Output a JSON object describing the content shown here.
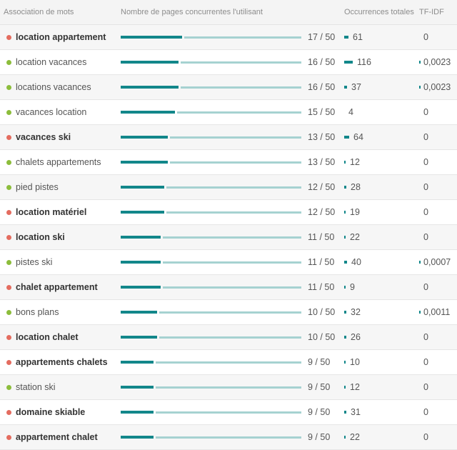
{
  "header": {
    "association": "Association de mots",
    "pages": "Nombre de pages concurrentes l'utilisant",
    "occurrences": "Occurrences totales",
    "tfidf": "TF-IDF"
  },
  "colors": {
    "red_status": "#e46c5f",
    "green_status": "#8cbd3b",
    "bar_dark": "#12878a",
    "bar_light": "#a6d2d1"
  },
  "rows": [
    {
      "keyword": "location appartement",
      "status": "red",
      "bold": true,
      "pages": "17 / 50",
      "pages_value": 17,
      "occurrences": "61",
      "occ_value": 61,
      "tfidf": "0",
      "tf_mark": false
    },
    {
      "keyword": "location vacances",
      "status": "green",
      "bold": false,
      "pages": "16 / 50",
      "pages_value": 16,
      "occurrences": "116",
      "occ_value": 116,
      "tfidf": "0,0023",
      "tf_mark": true
    },
    {
      "keyword": "locations vacances",
      "status": "green",
      "bold": false,
      "pages": "16 / 50",
      "pages_value": 16,
      "occurrences": "37",
      "occ_value": 37,
      "tfidf": "0,0023",
      "tf_mark": true
    },
    {
      "keyword": "vacances location",
      "status": "green",
      "bold": false,
      "pages": "15 / 50",
      "pages_value": 15,
      "occurrences": "4",
      "occ_value": 4,
      "tfidf": "0",
      "tf_mark": false
    },
    {
      "keyword": "vacances ski",
      "status": "red",
      "bold": true,
      "pages": "13 / 50",
      "pages_value": 13,
      "occurrences": "64",
      "occ_value": 64,
      "tfidf": "0",
      "tf_mark": false
    },
    {
      "keyword": "chalets appartements",
      "status": "green",
      "bold": false,
      "pages": "13 / 50",
      "pages_value": 13,
      "occurrences": "12",
      "occ_value": 12,
      "tfidf": "0",
      "tf_mark": false
    },
    {
      "keyword": "pied pistes",
      "status": "green",
      "bold": false,
      "pages": "12 / 50",
      "pages_value": 12,
      "occurrences": "28",
      "occ_value": 28,
      "tfidf": "0",
      "tf_mark": false
    },
    {
      "keyword": "location matériel",
      "status": "red",
      "bold": true,
      "pages": "12 / 50",
      "pages_value": 12,
      "occurrences": "19",
      "occ_value": 19,
      "tfidf": "0",
      "tf_mark": false
    },
    {
      "keyword": "location ski",
      "status": "red",
      "bold": true,
      "pages": "11 / 50",
      "pages_value": 11,
      "occurrences": "22",
      "occ_value": 22,
      "tfidf": "0",
      "tf_mark": false
    },
    {
      "keyword": "pistes ski",
      "status": "green",
      "bold": false,
      "pages": "11 / 50",
      "pages_value": 11,
      "occurrences": "40",
      "occ_value": 40,
      "tfidf": "0,0007",
      "tf_mark": true
    },
    {
      "keyword": "chalet appartement",
      "status": "red",
      "bold": true,
      "pages": "11 / 50",
      "pages_value": 11,
      "occurrences": "9",
      "occ_value": 9,
      "tfidf": "0",
      "tf_mark": false
    },
    {
      "keyword": "bons plans",
      "status": "green",
      "bold": false,
      "pages": "10 / 50",
      "pages_value": 10,
      "occurrences": "32",
      "occ_value": 32,
      "tfidf": "0,0011",
      "tf_mark": true
    },
    {
      "keyword": "location chalet",
      "status": "red",
      "bold": true,
      "pages": "10 / 50",
      "pages_value": 10,
      "occurrences": "26",
      "occ_value": 26,
      "tfidf": "0",
      "tf_mark": false
    },
    {
      "keyword": "appartements chalets",
      "status": "red",
      "bold": true,
      "pages": "9 / 50",
      "pages_value": 9,
      "occurrences": "10",
      "occ_value": 10,
      "tfidf": "0",
      "tf_mark": false
    },
    {
      "keyword": "station ski",
      "status": "green",
      "bold": false,
      "pages": "9 / 50",
      "pages_value": 9,
      "occurrences": "12",
      "occ_value": 12,
      "tfidf": "0",
      "tf_mark": false
    },
    {
      "keyword": "domaine skiable",
      "status": "red",
      "bold": true,
      "pages": "9 / 50",
      "pages_value": 9,
      "occurrences": "31",
      "occ_value": 31,
      "tfidf": "0",
      "tf_mark": false
    },
    {
      "keyword": "appartement chalet",
      "status": "red",
      "bold": true,
      "pages": "9 / 50",
      "pages_value": 9,
      "occurrences": "22",
      "occ_value": 22,
      "tfidf": "0",
      "tf_mark": false
    }
  ]
}
